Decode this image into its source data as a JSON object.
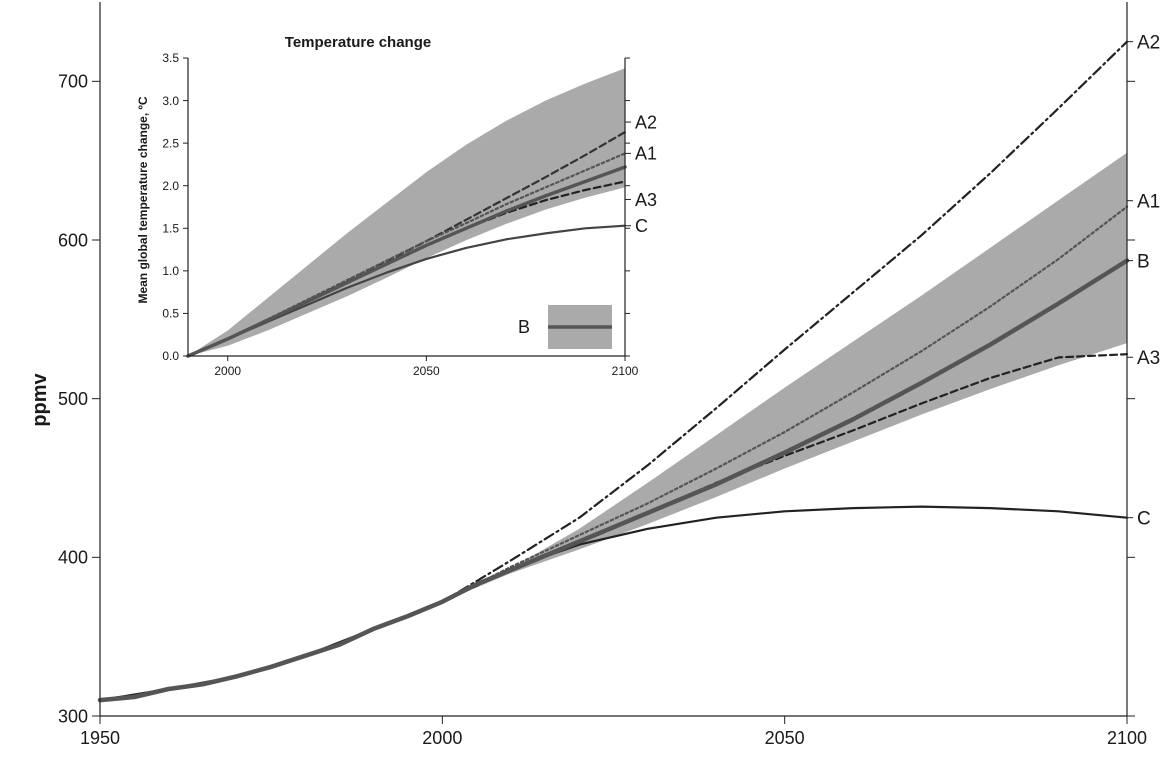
{
  "chart_data": [
    {
      "type": "line",
      "title": "",
      "xlabel": "",
      "ylabel": "ppmv",
      "xlim": [
        1950,
        2100
      ],
      "ylim": [
        300,
        750
      ],
      "x_ticks": [
        1950,
        2000,
        2050,
        2100
      ],
      "y_ticks": [
        300,
        400,
        500,
        600,
        700
      ],
      "grid": false,
      "band": {
        "name": "B",
        "color": "#aaaaaa",
        "x": [
          2000,
          2010,
          2020,
          2030,
          2040,
          2050,
          2060,
          2070,
          2080,
          2090,
          2100
        ],
        "low": [
          372,
          390,
          405,
          421,
          438,
          456,
          473,
          490,
          506,
          521,
          535
        ],
        "high": [
          372,
          393,
          418,
          447,
          477,
          507,
          536,
          565,
          595,
          625,
          655
        ]
      },
      "series": [
        {
          "name": "B",
          "style": "solid",
          "color": "#555555",
          "x": [
            1950,
            1955,
            1960,
            1965,
            1970,
            1975,
            1980,
            1985,
            1990,
            1995,
            2000,
            2005,
            2010,
            2020,
            2030,
            2040,
            2050,
            2060,
            2070,
            2080,
            2090,
            2100
          ],
          "y": [
            310,
            312,
            317,
            320,
            325,
            331,
            338,
            345,
            355,
            363,
            372,
            383,
            392,
            410,
            428,
            446,
            466,
            487,
            510,
            534,
            560,
            587
          ]
        },
        {
          "name": "A2",
          "style": "dashdot",
          "color": "#222222",
          "x": [
            2000,
            2010,
            2020,
            2030,
            2040,
            2050,
            2060,
            2070,
            2080,
            2090,
            2100
          ],
          "y": [
            372,
            398,
            425,
            458,
            494,
            531,
            567,
            603,
            642,
            683,
            725
          ]
        },
        {
          "name": "A1",
          "style": "dotted",
          "color": "#555555",
          "x": [
            2000,
            2010,
            2020,
            2030,
            2040,
            2050,
            2060,
            2070,
            2080,
            2090,
            2100
          ],
          "y": [
            372,
            394,
            414,
            434,
            456,
            479,
            504,
            530,
            558,
            588,
            621
          ]
        },
        {
          "name": "A3",
          "style": "dashed",
          "color": "#222222",
          "x": [
            2000,
            2010,
            2020,
            2030,
            2040,
            2050,
            2060,
            2070,
            2080,
            2090,
            2100
          ],
          "y": [
            372,
            392,
            410,
            428,
            447,
            464,
            480,
            497,
            513,
            526,
            528
          ]
        },
        {
          "name": "C",
          "style": "solid",
          "color": "#222222",
          "x": [
            1950,
            1960,
            1970,
            1980,
            1990,
            2000,
            2010,
            2020,
            2030,
            2040,
            2050,
            2060,
            2070,
            2080,
            2090,
            2100
          ],
          "y": [
            310,
            317,
            325,
            338,
            355,
            372,
            393,
            408,
            418,
            425,
            429,
            431,
            432,
            431,
            429,
            425
          ]
        }
      ],
      "end_labels": [
        "A2",
        "A1",
        "B",
        "A3",
        "C"
      ]
    },
    {
      "type": "line",
      "title": "Temperature change",
      "xlabel": "",
      "ylabel": "Mean global temperature change, ºC",
      "xlim": [
        1990,
        2100
      ],
      "ylim": [
        0.0,
        3.5
      ],
      "x_ticks": [
        2000,
        2050,
        2100
      ],
      "y_ticks": [
        "0.0",
        "0.5",
        "1.0",
        "1.5",
        "2.0",
        "2.5",
        "3.0",
        "3.5"
      ],
      "grid": false,
      "legend": {
        "label": "B",
        "position": "bottom-right"
      },
      "band": {
        "name": "B",
        "color": "#aaaaaa",
        "x": [
          1990,
          2000,
          2010,
          2020,
          2030,
          2040,
          2050,
          2060,
          2070,
          2080,
          2090,
          2100
        ],
        "low": [
          0.0,
          0.12,
          0.3,
          0.5,
          0.7,
          0.92,
          1.15,
          1.36,
          1.55,
          1.72,
          1.86,
          1.98
        ],
        "high": [
          0.0,
          0.3,
          0.68,
          1.06,
          1.44,
          1.8,
          2.16,
          2.48,
          2.76,
          3.0,
          3.2,
          3.38
        ]
      },
      "series": [
        {
          "name": "B",
          "style": "solid",
          "color": "#555555",
          "x": [
            1990,
            2000,
            2010,
            2020,
            2030,
            2040,
            2050,
            2060,
            2070,
            2080,
            2090,
            2100
          ],
          "y": [
            0.0,
            0.2,
            0.42,
            0.64,
            0.86,
            1.08,
            1.3,
            1.5,
            1.7,
            1.88,
            2.05,
            2.22
          ]
        },
        {
          "name": "A2",
          "style": "dashed",
          "color": "#333333",
          "x": [
            1990,
            2000,
            2010,
            2020,
            2030,
            2040,
            2050,
            2060,
            2070,
            2080,
            2090,
            2100
          ],
          "y": [
            0.0,
            0.2,
            0.42,
            0.65,
            0.88,
            1.11,
            1.35,
            1.6,
            1.85,
            2.1,
            2.36,
            2.63
          ]
        },
        {
          "name": "A1",
          "style": "dotted",
          "color": "#555555",
          "x": [
            1990,
            2000,
            2010,
            2020,
            2030,
            2040,
            2050,
            2060,
            2070,
            2080,
            2090,
            2100
          ],
          "y": [
            0.0,
            0.2,
            0.43,
            0.66,
            0.89,
            1.12,
            1.35,
            1.56,
            1.78,
            1.98,
            2.18,
            2.38
          ]
        },
        {
          "name": "A3",
          "style": "dashed",
          "color": "#222222",
          "x": [
            1990,
            2000,
            2010,
            2020,
            2030,
            2040,
            2050,
            2060,
            2070,
            2080,
            2090,
            2100
          ],
          "y": [
            0.0,
            0.2,
            0.42,
            0.64,
            0.86,
            1.08,
            1.3,
            1.5,
            1.68,
            1.83,
            1.95,
            2.05
          ]
        },
        {
          "name": "C",
          "style": "solid",
          "color": "#444444",
          "x": [
            1990,
            2000,
            2010,
            2020,
            2030,
            2040,
            2050,
            2060,
            2070,
            2080,
            2090,
            2100
          ],
          "y": [
            0.0,
            0.2,
            0.4,
            0.6,
            0.8,
            0.98,
            1.14,
            1.27,
            1.37,
            1.44,
            1.5,
            1.53
          ]
        }
      ],
      "end_labels": [
        "A2",
        "A1",
        "A3",
        "C"
      ]
    }
  ]
}
